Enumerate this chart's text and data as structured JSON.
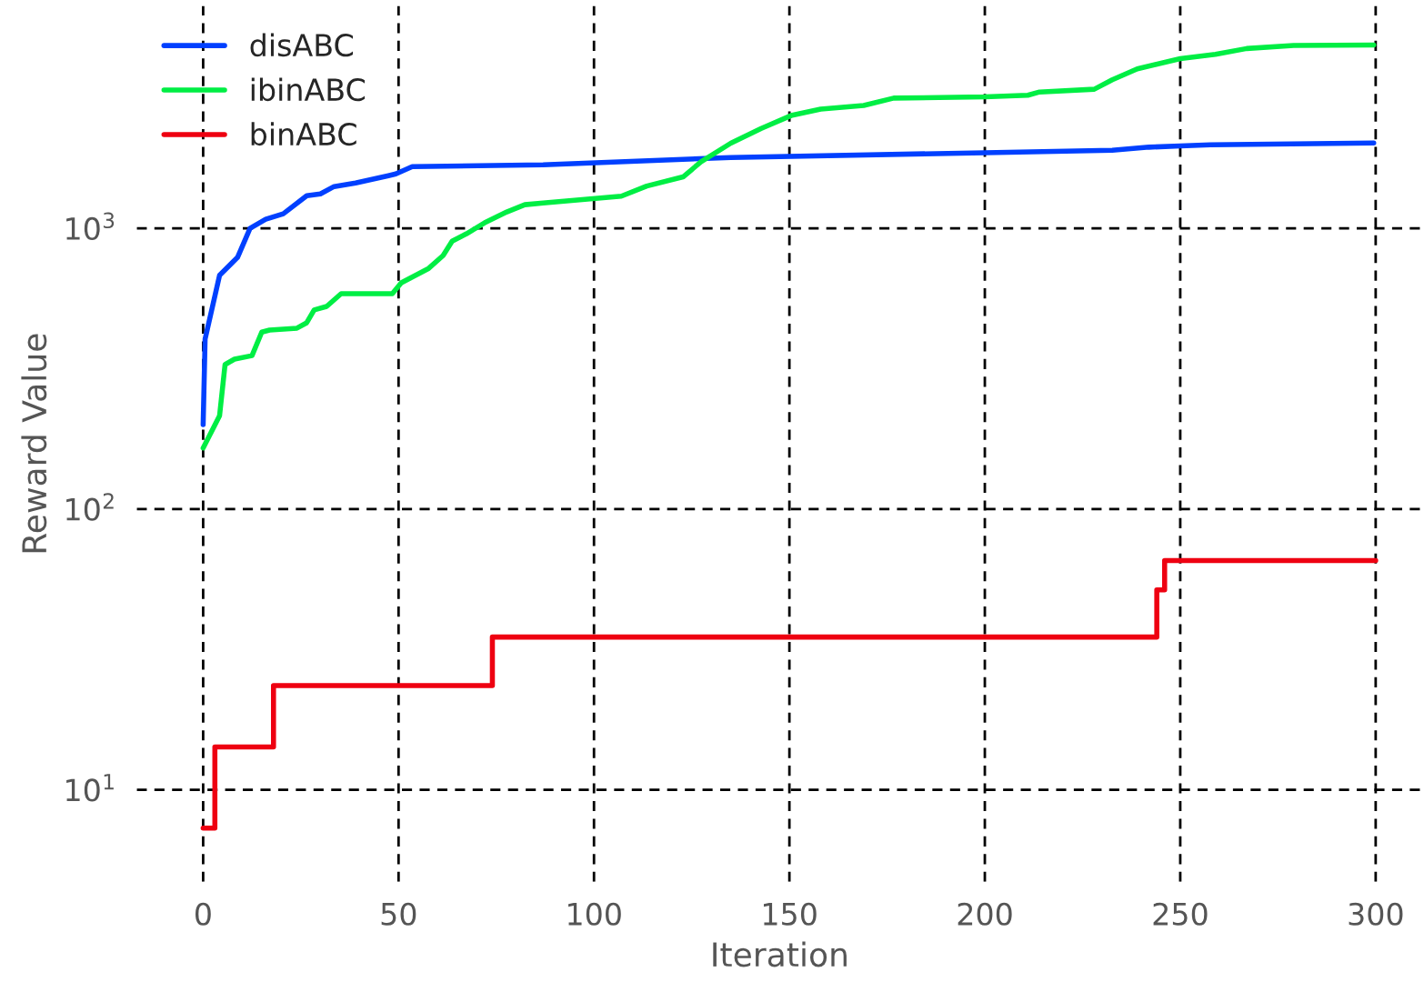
{
  "chart_data": {
    "type": "line",
    "xlabel": "Iteration",
    "ylabel": "Reward Value",
    "log": "y",
    "grid": true,
    "legend": "top left",
    "line_style": "solid",
    "marker": "none",
    "xlim": [
      -17,
      312
    ],
    "ylim": [
      4.7,
      6200
    ],
    "xticks": [
      0,
      50,
      100,
      150,
      200,
      250,
      300
    ],
    "yticks": [
      {
        "value": 10,
        "label": "10$^{1}$"
      },
      {
        "value": 100,
        "label": "10$^{2}$"
      },
      {
        "value": 1000,
        "label": "10$^{3}$"
      }
    ],
    "series": [
      {
        "name": "disABC",
        "color": "#0040ff",
        "x": [
          0,
          0.5,
          4.2,
          8.8,
          11,
          12,
          16,
          20.5,
          26.5,
          30,
          33.5,
          39,
          47.4,
          49.3,
          53.5,
          87,
          135,
          200,
          232.6,
          242,
          250,
          257.7,
          299.5
        ],
        "values": [
          200,
          403,
          680,
          788,
          928,
          1000,
          1077,
          1127,
          1307,
          1327,
          1409,
          1451,
          1540,
          1563,
          1660,
          1684,
          1788,
          1860,
          1898,
          1946,
          1966,
          1985,
          2015
        ]
      },
      {
        "name": "ibinABC",
        "color": "#00ee44",
        "x": [
          0,
          4.2,
          5.6,
          8,
          12.5,
          15,
          17,
          24,
          26.5,
          28.4,
          31.6,
          35.3,
          48.4,
          50.7,
          57.7,
          61.4,
          63.7,
          67.4,
          72,
          77.7,
          82.3,
          87,
          107,
          113.5,
          122.8,
          127.4,
          135,
          142.8,
          150.7,
          158,
          169,
          176.7,
          200,
          211,
          214,
          228,
          232.6,
          239,
          250,
          259,
          267,
          279,
          299.5
        ],
        "values": [
          165,
          215,
          327,
          342,
          352,
          427,
          434,
          441,
          461,
          512,
          527,
          585,
          585,
          640,
          720,
          800,
          900,
          957,
          1046,
          1144,
          1214,
          1232,
          1302,
          1415,
          1525,
          1727,
          2010,
          2270,
          2530,
          2660,
          2740,
          2910,
          2940,
          2980,
          3060,
          3130,
          3380,
          3700,
          4020,
          4170,
          4370,
          4480,
          4500
        ]
      },
      {
        "name": "binABC",
        "color": "#ee0011",
        "type": "step",
        "x": [
          0,
          3,
          18,
          74,
          244,
          246,
          300
        ],
        "values": [
          7.3,
          14.2,
          23.5,
          35,
          51.5,
          65.5,
          65.5
        ]
      }
    ]
  }
}
